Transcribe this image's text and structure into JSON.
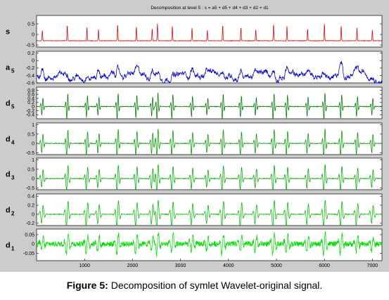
{
  "figure_title": "Decomposition at level 5 : s = a5 + d5 + d4 + d3 + d2 + d1",
  "caption": {
    "label": "Figure 5:",
    "text": " Decomposition of symlet Wavelet-original signal."
  },
  "chart_data": {
    "type": "line",
    "x_range": [
      0,
      7200
    ],
    "x_ticks": [
      "1000",
      "2000",
      "3000",
      "4000",
      "5000",
      "6000",
      "7000"
    ],
    "beat_positions_approx": [
      120,
      640,
      1050,
      1290,
      1690,
      2080,
      2410,
      2520,
      2830,
      3240,
      3560,
      3880,
      4260,
      4570,
      4940,
      5220,
      5650,
      6000,
      6350,
      6680,
      7000
    ],
    "panels": [
      {
        "label": "s",
        "sub": "",
        "color": "#dd0000",
        "ylim": [
          -0.6,
          0.9
        ],
        "yticks": [
          "0.5",
          "0",
          "-0.5"
        ],
        "baseline": -0.3,
        "amplitude": 0.85
      },
      {
        "label": "a",
        "sub": "5",
        "color": "#0000cc",
        "ylim": [
          -0.6,
          0.25
        ],
        "yticks": [
          "0.2",
          "0",
          "-0.2",
          "-0.4",
          "-0.6"
        ],
        "baseline": -0.4,
        "amplitude": 0.45
      },
      {
        "label": "d",
        "sub": "5",
        "color": "#007700",
        "ylim": [
          -0.6,
          0.95
        ],
        "yticks": [
          "0.8",
          "0.6",
          "0.4",
          "0.2",
          "0",
          "-0.2",
          "-0.4"
        ],
        "baseline": 0,
        "amplitude": 0.8
      },
      {
        "label": "d",
        "sub": "4",
        "color": "#009900",
        "ylim": [
          -0.6,
          1.1
        ],
        "yticks": [
          "1",
          "0.5",
          "0",
          "-0.5"
        ],
        "baseline": 0,
        "amplitude": 0.95
      },
      {
        "label": "d",
        "sub": "3",
        "color": "#00aa00",
        "ylim": [
          -0.6,
          1.1
        ],
        "yticks": [
          "1",
          "0.5",
          "0",
          "-0.5"
        ],
        "baseline": 0,
        "amplitude": 0.9
      },
      {
        "label": "d",
        "sub": "2",
        "color": "#00bb00",
        "ylim": [
          -0.25,
          0.45
        ],
        "yticks": [
          "0.4",
          "0.2",
          "0",
          "-0.2"
        ],
        "baseline": 0,
        "amplitude": 0.38
      },
      {
        "label": "d",
        "sub": "1",
        "color": "#00dd00",
        "ylim": [
          -0.09,
          0.08
        ],
        "yticks": [
          "0.05",
          "0",
          "-0.05"
        ],
        "baseline": 0,
        "amplitude": 0.07
      }
    ]
  },
  "colors": {
    "figure_bg": "#cccccc",
    "axes_bg": "#ffffff"
  }
}
